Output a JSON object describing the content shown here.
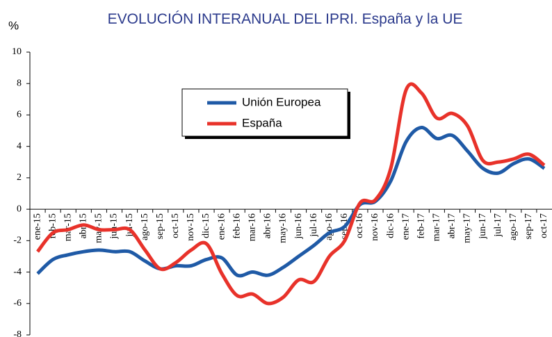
{
  "chart_data": {
    "type": "line",
    "title": "EVOLUCIÓN INTERANUAL DEL IPRI. España y la UE",
    "y_label": "%",
    "categories": [
      "ene-15",
      "feb-15",
      "mar-15",
      "abr-15",
      "may-15",
      "jun-15",
      "jul-15",
      "ago-15",
      "sep-15",
      "oct-15",
      "nov-15",
      "dic-15",
      "ene-16",
      "feb-16",
      "mar-16",
      "abr-16",
      "may-16",
      "jun-16",
      "jul-16",
      "ago-16",
      "sep-16",
      "oct-16",
      "nov-16",
      "dic-16",
      "ene-17",
      "feb-17",
      "mar-17",
      "abr-17",
      "may-17",
      "jun-17",
      "jul-17",
      "ago-17",
      "sep-17",
      "oct-17"
    ],
    "series": [
      {
        "name": "Unión Europea",
        "color": "#1f5aa6",
        "values": [
          -4.1,
          -3.2,
          -2.9,
          -2.7,
          -2.6,
          -2.7,
          -2.7,
          -3.3,
          -3.8,
          -3.6,
          -3.6,
          -3.2,
          -3.1,
          -4.2,
          -4.0,
          -4.2,
          -3.7,
          -3.0,
          -2.3,
          -1.5,
          -1.1,
          0.3,
          0.5,
          1.8,
          4.3,
          5.2,
          4.5,
          4.7,
          3.7,
          2.6,
          2.3,
          2.9,
          3.2,
          2.6
        ]
      },
      {
        "name": "España",
        "color": "#e8322a",
        "values": [
          -2.7,
          -1.5,
          -1.3,
          -1.0,
          -1.3,
          -1.3,
          -1.3,
          -2.6,
          -3.8,
          -3.4,
          -2.6,
          -2.2,
          -4.1,
          -5.5,
          -5.4,
          -6.0,
          -5.6,
          -4.5,
          -4.6,
          -3.0,
          -2.0,
          0.4,
          0.6,
          2.6,
          7.6,
          7.4,
          5.8,
          6.1,
          5.3,
          3.1,
          3.0,
          3.2,
          3.5,
          2.8
        ]
      }
    ],
    "ylim": [
      -8,
      10
    ],
    "yticks": [
      -8,
      -6,
      -4,
      -2,
      0,
      2,
      4,
      6,
      8,
      10
    ]
  }
}
